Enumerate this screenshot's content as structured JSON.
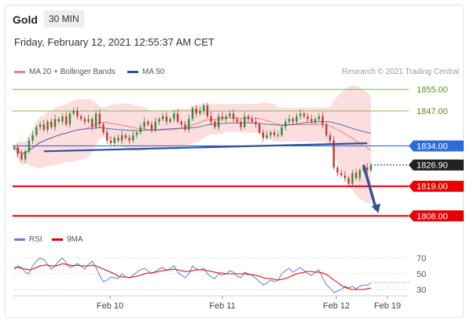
{
  "header": {
    "instrument": "Gold",
    "timeframe": "30 MIN",
    "datetime": "Friday, February 12, 2021 12:55:37 AM CET"
  },
  "legend": {
    "ma20_label": "MA 20 + Bollinger Bands",
    "ma50_label": "MA 50",
    "rsi_label": "RSI",
    "ma9_label": "9MA",
    "credit": "Research © 2021 Trading Central"
  },
  "colors": {
    "ma20": "#f08080",
    "ma50": "#2f5597",
    "bands": "#fbd3d3",
    "support": "#e60000",
    "resistance": "#7fbf3f",
    "pivot": "#2f6bd8",
    "last": "#222222",
    "rsi": "#5b7fd6",
    "ma9": "#e60000"
  },
  "chart_data": [
    {
      "type": "candlestick",
      "x_ticks": [
        "Feb 10",
        "Feb 11",
        "Feb 12",
        "Feb 19"
      ],
      "y_range": [
        1804,
        1859
      ],
      "price_levels": [
        {
          "value": 1855.0,
          "label": "1855.00",
          "kind": "resistance"
        },
        {
          "value": 1847.0,
          "label": "1847.00",
          "kind": "resistance"
        },
        {
          "value": 1834.0,
          "label": "1834.00",
          "kind": "pivot"
        },
        {
          "value": 1826.9,
          "label": "1826.90",
          "kind": "last"
        },
        {
          "value": 1819.0,
          "label": "1819.00",
          "kind": "support"
        },
        {
          "value": 1808.0,
          "label": "1808.00",
          "kind": "support"
        }
      ],
      "close": [
        1833.5,
        1831,
        1829,
        1832,
        1836,
        1838,
        1841,
        1842,
        1840,
        1843,
        1841,
        1844,
        1843,
        1845,
        1842,
        1846,
        1847,
        1845,
        1844,
        1843,
        1844,
        1841,
        1846,
        1842,
        1839,
        1836,
        1835,
        1837,
        1836,
        1838,
        1837,
        1836,
        1838,
        1839,
        1841,
        1843,
        1842,
        1840,
        1843,
        1844,
        1845,
        1843,
        1844,
        1846,
        1843,
        1842,
        1840,
        1844,
        1848,
        1846,
        1847,
        1849,
        1845,
        1843,
        1841,
        1845,
        1844,
        1845,
        1846,
        1844,
        1843,
        1841,
        1845,
        1844,
        1843,
        1842,
        1839,
        1837,
        1838,
        1839,
        1838,
        1838,
        1841,
        1843,
        1844,
        1843,
        1845,
        1846,
        1845,
        1844,
        1843,
        1844,
        1845,
        1842,
        1838,
        1836,
        1826,
        1824,
        1823,
        1822,
        1820,
        1824,
        1822,
        1825,
        1826,
        1825,
        1827
      ],
      "annotations": [
        {
          "kind": "trendline",
          "from": [
            8,
            1832
          ],
          "to": [
            95,
            1835
          ]
        },
        {
          "kind": "arrow",
          "from": [
            94,
            1826.9
          ],
          "to": [
            98,
            1809
          ]
        }
      ]
    },
    {
      "type": "line",
      "y_range": [
        20,
        80
      ],
      "y_ticks": [
        70,
        50,
        30
      ],
      "rsi": [
        55,
        60,
        58,
        52,
        50,
        60,
        66,
        70,
        68,
        62,
        56,
        60,
        66,
        70,
        64,
        58,
        60,
        63,
        60,
        56,
        62,
        66,
        58,
        48,
        40,
        42,
        46,
        45,
        44,
        50,
        46,
        45,
        48,
        52,
        55,
        57,
        54,
        50,
        53,
        56,
        58,
        54,
        57,
        60,
        52,
        48,
        45,
        50,
        60,
        56,
        55,
        57,
        50,
        46,
        44,
        50,
        48,
        50,
        54,
        52,
        47,
        45,
        52,
        50,
        48,
        44,
        40,
        36,
        38,
        42,
        40,
        42,
        50,
        54,
        57,
        52,
        55,
        58,
        54,
        50,
        48,
        52,
        55,
        45,
        36,
        32,
        26,
        28,
        30,
        34,
        32,
        34,
        31,
        34,
        36,
        35,
        39
      ],
      "ma9": [
        58,
        58,
        57,
        56,
        55,
        56,
        58,
        60,
        61,
        61,
        60,
        60,
        61,
        63,
        62,
        61,
        60,
        61,
        60,
        60,
        60,
        61,
        60,
        58,
        56,
        54,
        52,
        50,
        47,
        46,
        46,
        45,
        46,
        47,
        48,
        50,
        51,
        51,
        52,
        53,
        54,
        55,
        55,
        56,
        55,
        54,
        53,
        53,
        54,
        55,
        55,
        55,
        54,
        53,
        52,
        51,
        51,
        50,
        50,
        50,
        50,
        50,
        50,
        49,
        49,
        48,
        47,
        45,
        44,
        44,
        43,
        42,
        43,
        44,
        46,
        48,
        50,
        51,
        52,
        53,
        53,
        52,
        52,
        51,
        49,
        46,
        42,
        39,
        35,
        33,
        31,
        30,
        30,
        30,
        30,
        31,
        32
      ]
    }
  ]
}
